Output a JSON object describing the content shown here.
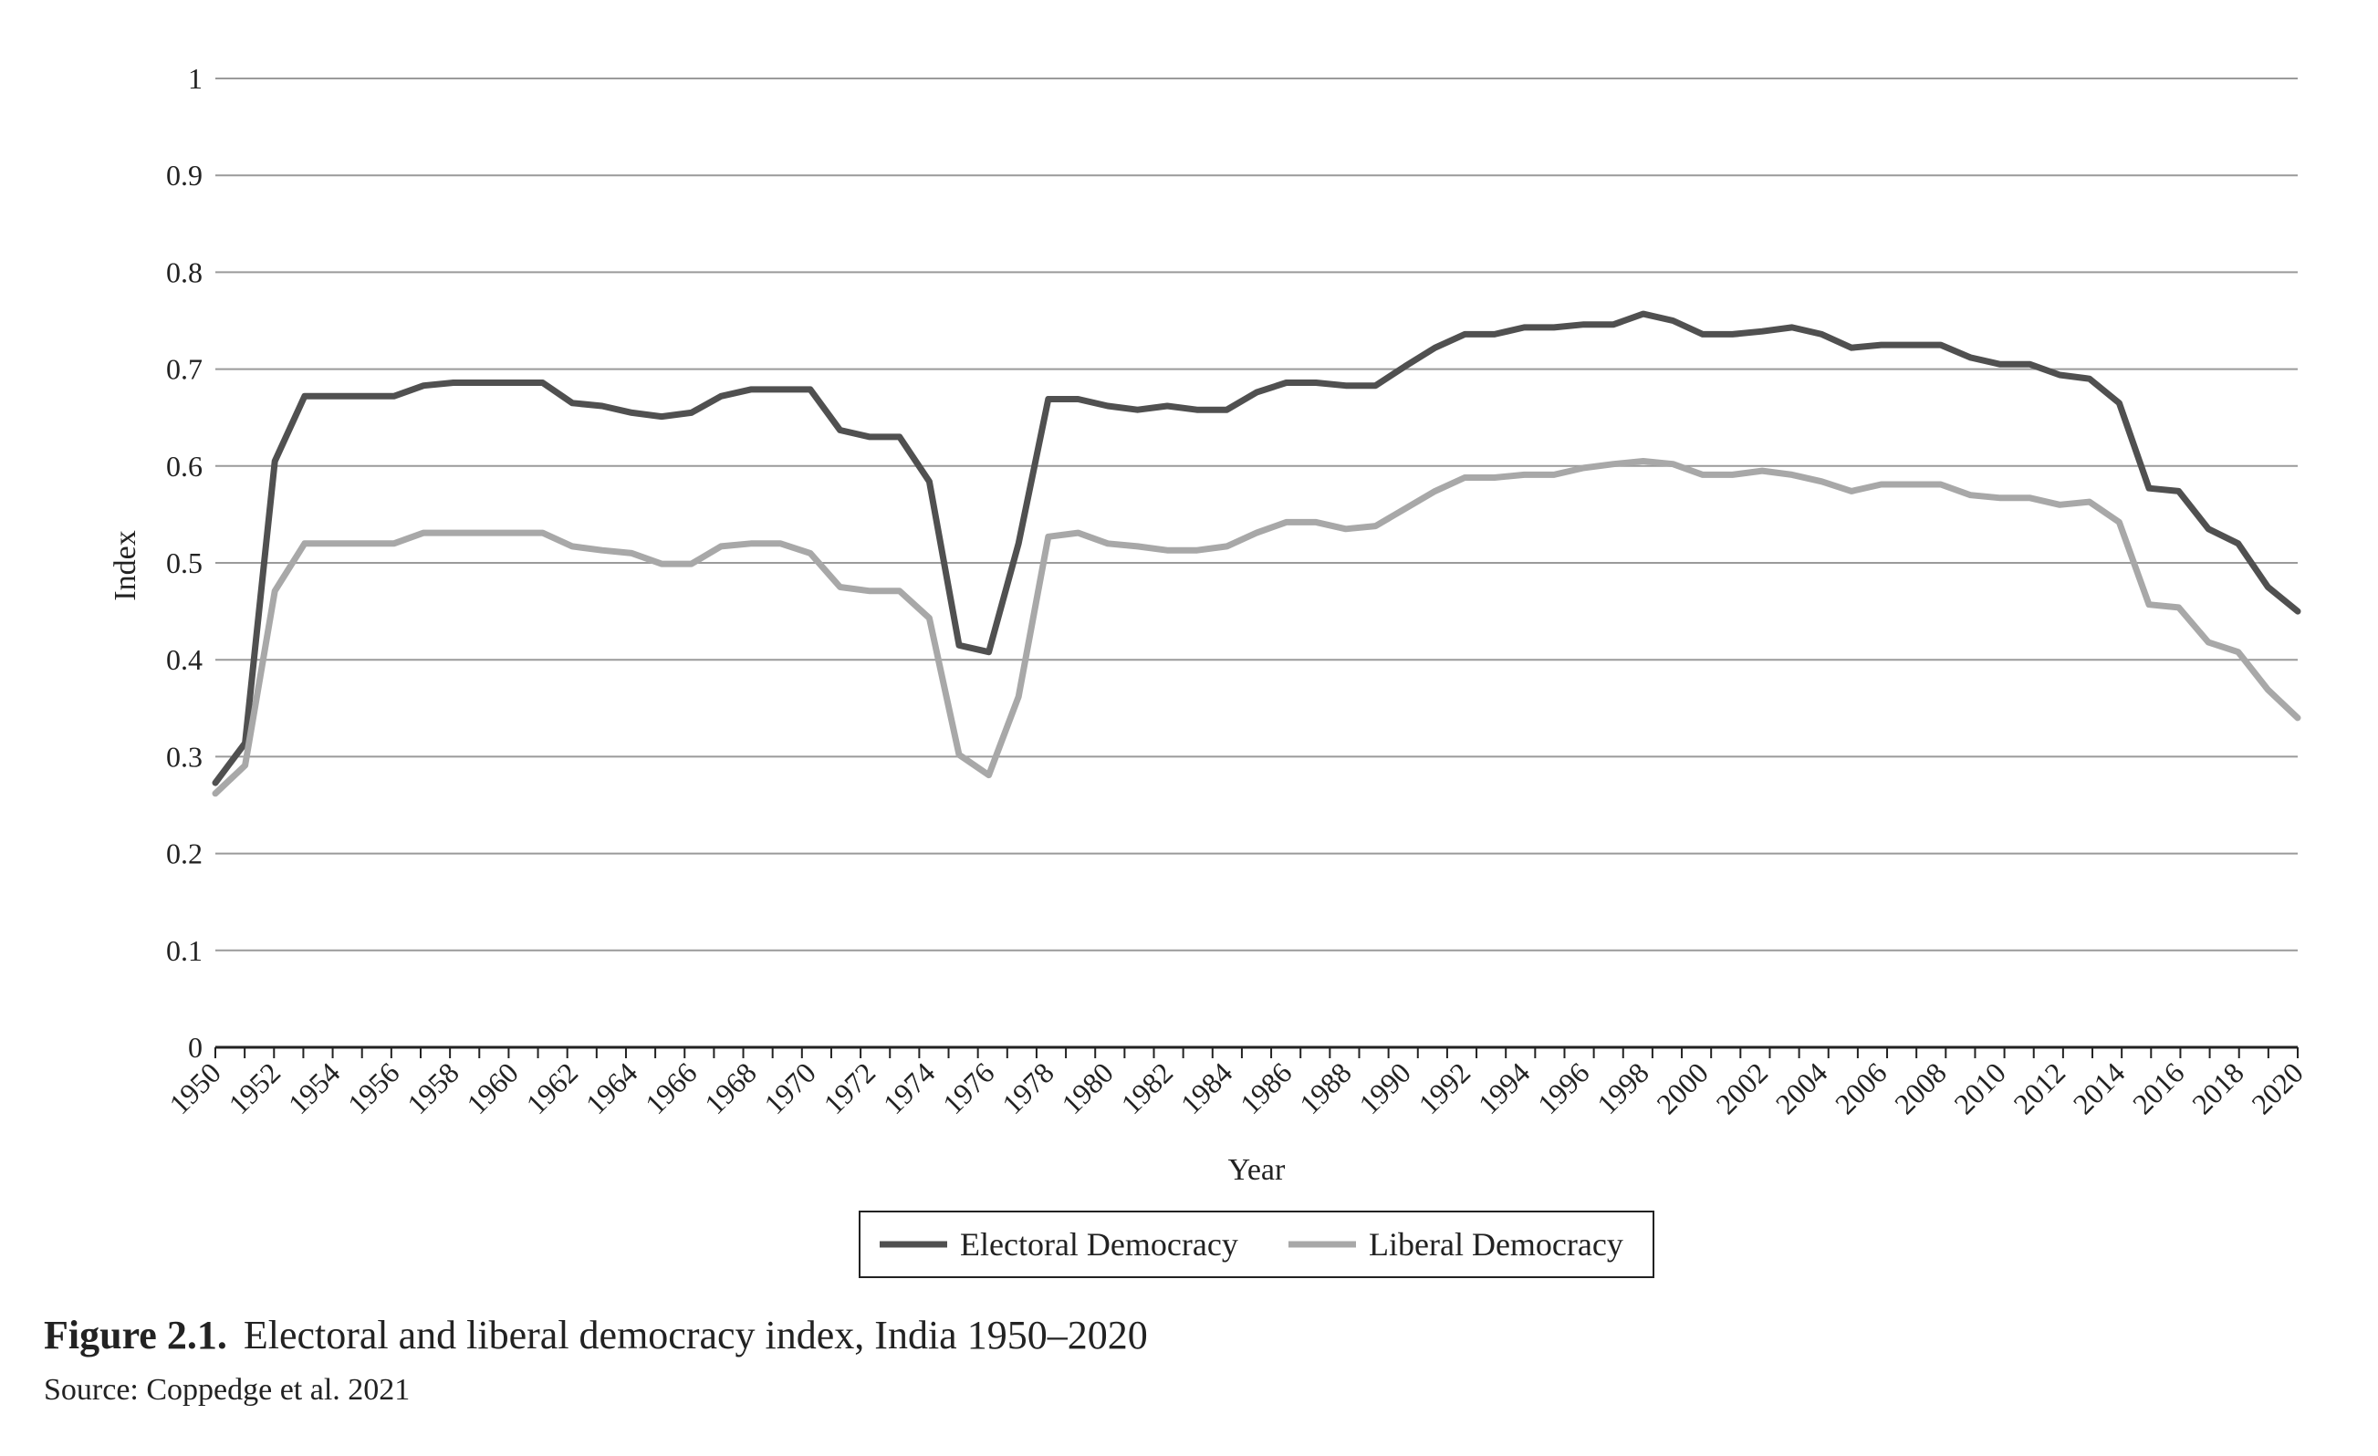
{
  "figure": {
    "label": "Figure 2.1.",
    "title": "Electoral and liberal democracy index, India 1950–2020",
    "source": "Source: Coppedge et al. 2021"
  },
  "chart_data": {
    "type": "line",
    "xlabel": "Year",
    "ylabel": "Index",
    "xlim": [
      1950,
      2020
    ],
    "ylim": [
      0,
      1
    ],
    "yticks": [
      0,
      0.1,
      0.2,
      0.3,
      0.4,
      0.5,
      0.6,
      0.7,
      0.8,
      0.9,
      1
    ],
    "ytick_labels": [
      "0",
      "0.1",
      "0.2",
      "0.3",
      "0.4",
      "0.5",
      "0.6",
      "0.7",
      "0.8",
      "0.9",
      "1"
    ],
    "xtick_labels": [
      "1950",
      "1952",
      "1954",
      "1956",
      "1958",
      "1960",
      "1962",
      "1964",
      "1966",
      "1968",
      "1970",
      "1972",
      "1974",
      "1976",
      "1978",
      "1980",
      "1982",
      "1984",
      "1986",
      "1988",
      "1990",
      "1992",
      "1994",
      "1996",
      "1998",
      "2000",
      "2002",
      "2004",
      "2006",
      "2008",
      "2010",
      "2012",
      "2014",
      "2016",
      "2018",
      "2020"
    ],
    "grid": "horizontal",
    "legend_position": "bottom",
    "x": [
      1950,
      1951,
      1952,
      1953,
      1954,
      1955,
      1956,
      1957,
      1958,
      1959,
      1960,
      1961,
      1962,
      1963,
      1964,
      1965,
      1966,
      1967,
      1968,
      1969,
      1970,
      1971,
      1972,
      1973,
      1974,
      1975,
      1976,
      1977,
      1978,
      1979,
      1980,
      1981,
      1982,
      1983,
      1984,
      1985,
      1986,
      1987,
      1988,
      1989,
      1990,
      1991,
      1992,
      1993,
      1994,
      1995,
      1996,
      1997,
      1998,
      1999,
      2000,
      2001,
      2002,
      2003,
      2004,
      2005,
      2006,
      2007,
      2008,
      2009,
      2010,
      2011,
      2012,
      2013,
      2014,
      2015,
      2016,
      2017,
      2018,
      2019,
      2020
    ],
    "series": [
      {
        "name": "Electoral Democracy",
        "color": "#505050",
        "values": [
          0.273,
          0.314,
          0.605,
          0.672,
          0.672,
          0.672,
          0.672,
          0.683,
          0.686,
          0.686,
          0.686,
          0.686,
          0.665,
          0.662,
          0.655,
          0.651,
          0.655,
          0.672,
          0.679,
          0.679,
          0.679,
          0.637,
          0.63,
          0.63,
          0.584,
          0.415,
          0.408,
          0.52,
          0.669,
          0.669,
          0.662,
          0.658,
          0.662,
          0.658,
          0.658,
          0.676,
          0.686,
          0.686,
          0.683,
          0.683,
          0.703,
          0.722,
          0.736,
          0.736,
          0.743,
          0.743,
          0.746,
          0.746,
          0.757,
          0.75,
          0.736,
          0.736,
          0.739,
          0.743,
          0.736,
          0.722,
          0.725,
          0.725,
          0.725,
          0.712,
          0.705,
          0.705,
          0.694,
          0.69,
          0.665,
          0.577,
          0.574,
          0.535,
          0.52,
          0.475,
          0.45
        ]
      },
      {
        "name": "Liberal Democracy",
        "color": "#a8a8a8",
        "values": [
          0.262,
          0.291,
          0.471,
          0.52,
          0.52,
          0.52,
          0.52,
          0.531,
          0.531,
          0.531,
          0.531,
          0.531,
          0.517,
          0.513,
          0.51,
          0.499,
          0.499,
          0.517,
          0.52,
          0.52,
          0.51,
          0.475,
          0.471,
          0.471,
          0.443,
          0.302,
          0.281,
          0.362,
          0.527,
          0.531,
          0.52,
          0.517,
          0.513,
          0.513,
          0.517,
          0.531,
          0.542,
          0.542,
          0.535,
          0.538,
          0.556,
          0.574,
          0.588,
          0.588,
          0.591,
          0.591,
          0.598,
          0.602,
          0.605,
          0.602,
          0.591,
          0.591,
          0.595,
          0.591,
          0.584,
          0.574,
          0.581,
          0.581,
          0.581,
          0.57,
          0.567,
          0.567,
          0.56,
          0.563,
          0.542,
          0.457,
          0.454,
          0.418,
          0.408,
          0.369,
          0.34
        ]
      }
    ]
  }
}
